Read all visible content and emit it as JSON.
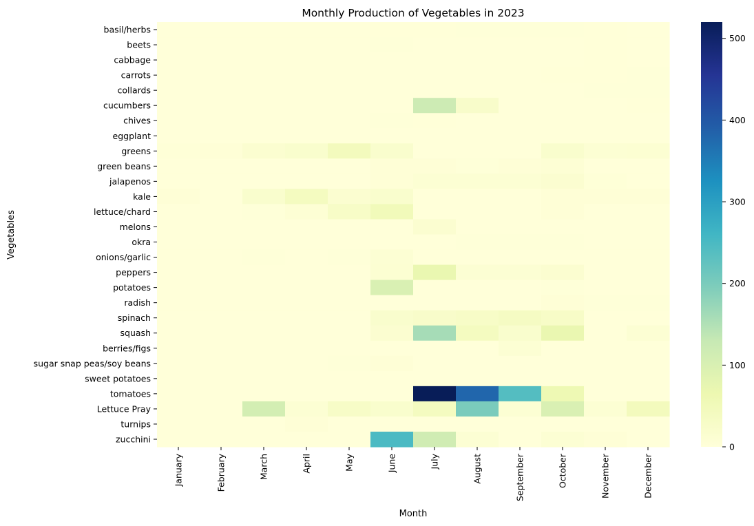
{
  "chart_data": {
    "type": "heatmap",
    "title": "Monthly Production of Vegetables in 2023",
    "xlabel": "Month",
    "ylabel": "Vegetables",
    "x_categories": [
      "January",
      "February",
      "March",
      "April",
      "May",
      "June",
      "July",
      "August",
      "September",
      "October",
      "November",
      "December"
    ],
    "y_categories": [
      "basil/herbs",
      "beets",
      "cabbage",
      "carrots",
      "collards",
      "cucumbers",
      "chives",
      "eggplant",
      "greens",
      "green beans",
      "jalapenos",
      "kale",
      "lettuce/chard",
      "melons",
      "okra",
      "onions/garlic",
      "peppers",
      "potatoes",
      "radish",
      "spinach",
      "squash",
      "berries/figs",
      "sugar snap peas/soy beans",
      "sweet potatoes",
      "tomatoes",
      "Lettuce Pray",
      "turnips",
      "zucchini"
    ],
    "values": [
      [
        0,
        0,
        0,
        0,
        0,
        1,
        1,
        2,
        2,
        2,
        1,
        0
      ],
      [
        0,
        0,
        0,
        0,
        0,
        2,
        0,
        0,
        0,
        0,
        1,
        0
      ],
      [
        0,
        0,
        0,
        0,
        0,
        0,
        0,
        0,
        0,
        0,
        1,
        0
      ],
      [
        0,
        0,
        0,
        0,
        0,
        0,
        0,
        0,
        0,
        1,
        1,
        2
      ],
      [
        0,
        0,
        0,
        0,
        0,
        0,
        0,
        0,
        0,
        0,
        2,
        2
      ],
      [
        0,
        0,
        0,
        0,
        0,
        0,
        120,
        25,
        0,
        0,
        0,
        1
      ],
      [
        0,
        0,
        0,
        0,
        0,
        2,
        1,
        0,
        0,
        0,
        0,
        0
      ],
      [
        0,
        0,
        0,
        0,
        0,
        0,
        0,
        0,
        0,
        0,
        0,
        0
      ],
      [
        3,
        5,
        15,
        20,
        45,
        20,
        0,
        0,
        0,
        20,
        10,
        12
      ],
      [
        0,
        0,
        0,
        0,
        0,
        5,
        5,
        2,
        5,
        8,
        0,
        0
      ],
      [
        0,
        0,
        0,
        0,
        0,
        5,
        10,
        10,
        10,
        15,
        3,
        0
      ],
      [
        5,
        0,
        20,
        40,
        15,
        20,
        0,
        0,
        0,
        5,
        5,
        5
      ],
      [
        0,
        0,
        2,
        8,
        30,
        50,
        0,
        0,
        0,
        5,
        0,
        0
      ],
      [
        0,
        0,
        0,
        0,
        0,
        0,
        15,
        0,
        0,
        0,
        0,
        0
      ],
      [
        0,
        0,
        0,
        0,
        0,
        0,
        0,
        2,
        2,
        2,
        0,
        0
      ],
      [
        0,
        0,
        2,
        0,
        2,
        10,
        0,
        0,
        0,
        0,
        0,
        0
      ],
      [
        0,
        0,
        0,
        0,
        0,
        12,
        70,
        10,
        10,
        15,
        0,
        0
      ],
      [
        0,
        0,
        0,
        0,
        0,
        100,
        0,
        0,
        0,
        2,
        0,
        0
      ],
      [
        0,
        0,
        0,
        0,
        0,
        0,
        0,
        0,
        0,
        5,
        2,
        2
      ],
      [
        0,
        0,
        0,
        0,
        0,
        20,
        25,
        30,
        35,
        30,
        0,
        0
      ],
      [
        0,
        0,
        0,
        0,
        0,
        15,
        160,
        40,
        20,
        70,
        0,
        10
      ],
      [
        0,
        0,
        0,
        0,
        0,
        0,
        0,
        0,
        10,
        0,
        0,
        0
      ],
      [
        0,
        0,
        0,
        0,
        2,
        5,
        0,
        0,
        0,
        0,
        0,
        0
      ],
      [
        0,
        0,
        0,
        0,
        0,
        0,
        0,
        0,
        0,
        0,
        0,
        0
      ],
      [
        0,
        0,
        0,
        0,
        0,
        0,
        520,
        380,
        240,
        60,
        0,
        0
      ],
      [
        0,
        0,
        110,
        10,
        30,
        20,
        40,
        200,
        10,
        100,
        10,
        45
      ],
      [
        0,
        0,
        0,
        5,
        0,
        0,
        0,
        0,
        0,
        0,
        0,
        0
      ],
      [
        0,
        0,
        0,
        0,
        0,
        250,
        115,
        10,
        0,
        10,
        5,
        0
      ]
    ],
    "colorbar_ticks": [
      0,
      100,
      200,
      300,
      400,
      500
    ],
    "vmin": 0,
    "vmax": 520,
    "colormap": "YlGnBu",
    "colormap_stops": [
      "#ffffd9",
      "#edf8b1",
      "#c7e9b4",
      "#7fcdbb",
      "#41b6c4",
      "#1d91c0",
      "#225ea8",
      "#253494",
      "#081d58"
    ]
  }
}
